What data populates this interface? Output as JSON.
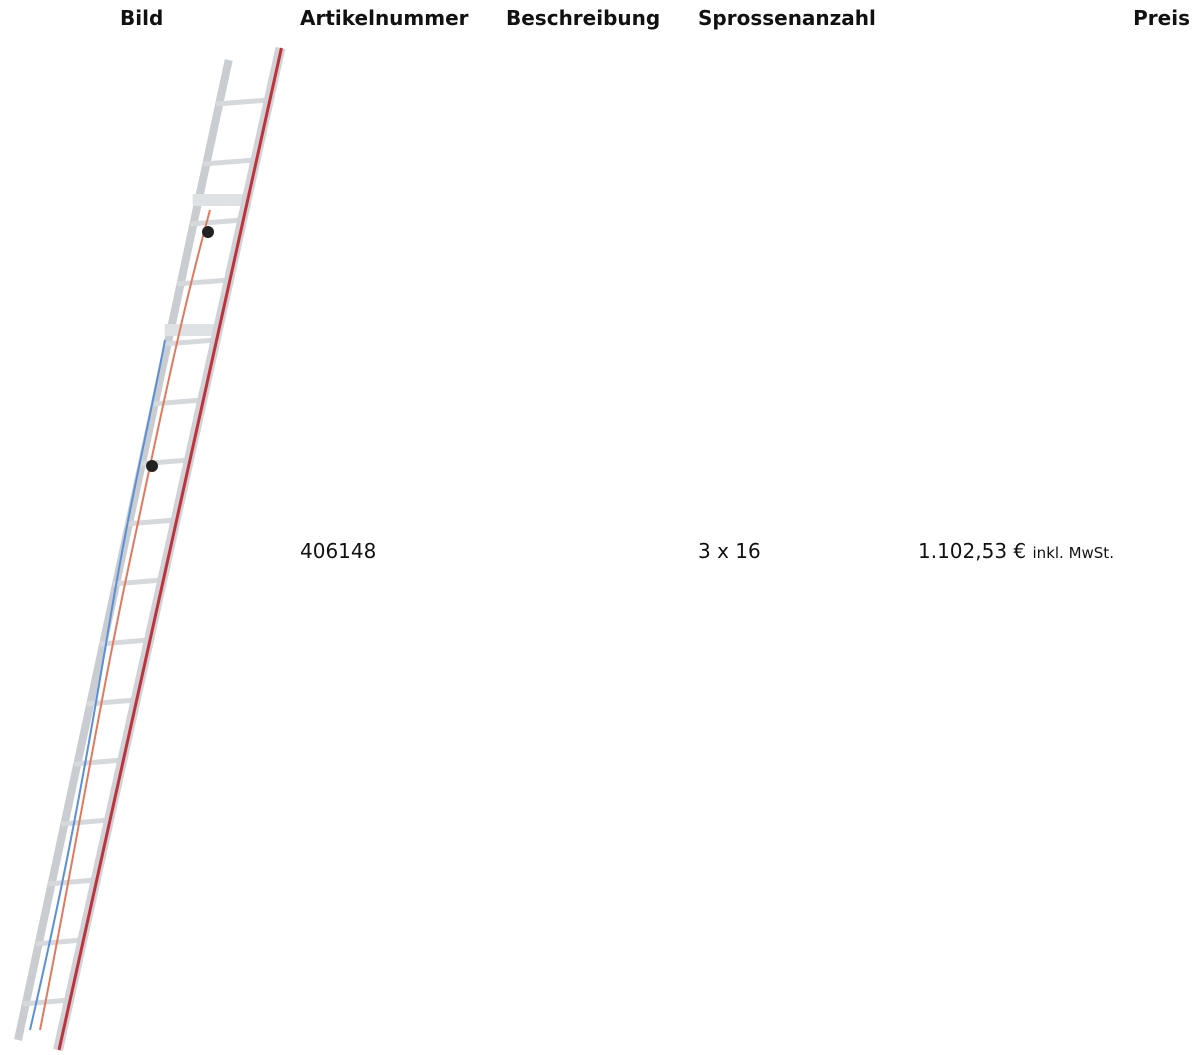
{
  "table": {
    "headers": [
      "Bild",
      "Artikelnummer",
      "Beschreibung",
      "Sprossenanzahl",
      "Preis"
    ],
    "rows": [
      {
        "article_number": "406148",
        "rungs": "3 x 16",
        "price": "1.102,53 €",
        "price_note": "inkl. MwSt."
      }
    ]
  }
}
